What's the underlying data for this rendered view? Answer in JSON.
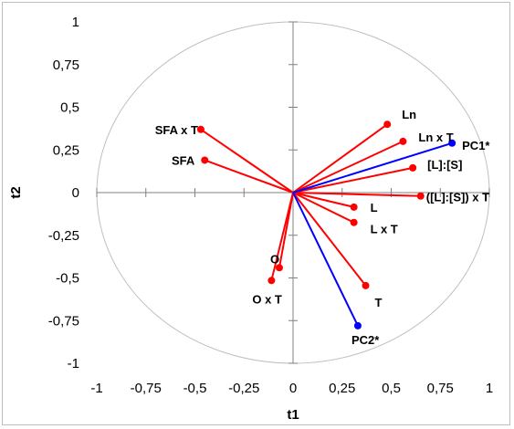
{
  "chart_data": {
    "type": "scatter",
    "title": "",
    "xlabel": "t1",
    "ylabel": "t2",
    "xlim": [
      -1,
      1
    ],
    "ylim": [
      -1,
      1
    ],
    "x_ticks": [
      "-1",
      "-0,75",
      "-0,5",
      "-0,25",
      "0",
      "0,25",
      "0,5",
      "0,75",
      "1"
    ],
    "y_ticks": [
      "1",
      "0,75",
      "0,5",
      "0,25",
      "0",
      "-0,25",
      "-0,5",
      "-0,75",
      "-1"
    ],
    "grid": false,
    "unit_circle": true,
    "colors": {
      "variables": "#ff0000",
      "components": "#0000ff",
      "circle": "#bfbfbf",
      "axes": "#808080"
    },
    "series": [
      {
        "name": "variables",
        "points": [
          {
            "label": "Ln",
            "x": 0.48,
            "y": 0.4
          },
          {
            "label": "Ln x T",
            "x": 0.56,
            "y": 0.3
          },
          {
            "label": "[L]:[S]",
            "x": 0.61,
            "y": 0.145
          },
          {
            "label": "([L]:[S]) x T",
            "x": 0.65,
            "y": -0.02
          },
          {
            "label": "L",
            "x": 0.31,
            "y": -0.085
          },
          {
            "label": "L x T",
            "x": 0.31,
            "y": -0.175
          },
          {
            "label": "T",
            "x": 0.37,
            "y": -0.545
          },
          {
            "label": "O",
            "x": -0.07,
            "y": -0.44
          },
          {
            "label": "O x T",
            "x": -0.11,
            "y": -0.515
          },
          {
            "label": "SFA",
            "x": -0.45,
            "y": 0.19
          },
          {
            "label": "SFA x T",
            "x": -0.47,
            "y": 0.37
          }
        ]
      },
      {
        "name": "components",
        "points": [
          {
            "label": "PC1*",
            "x": 0.81,
            "y": 0.29
          },
          {
            "label": "PC2*",
            "x": 0.33,
            "y": -0.78
          }
        ]
      }
    ]
  }
}
